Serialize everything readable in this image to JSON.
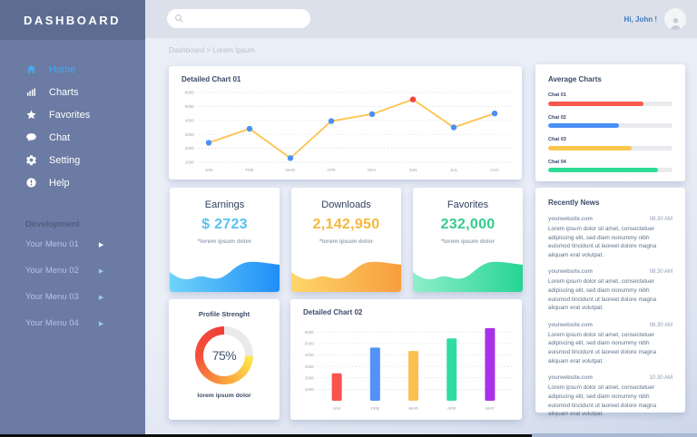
{
  "sidebar": {
    "brand": "DASHBOARD",
    "items": [
      {
        "label": "Home",
        "icon": "home-icon",
        "active": true
      },
      {
        "label": "Charts",
        "icon": "charts-icon",
        "active": false
      },
      {
        "label": "Favorites",
        "icon": "star-icon",
        "active": false
      },
      {
        "label": "Chat",
        "icon": "chat-icon",
        "active": false
      },
      {
        "label": "Setting",
        "icon": "gear-icon",
        "active": false
      },
      {
        "label": "Help",
        "icon": "help-icon",
        "active": false
      }
    ],
    "section_label": "Development",
    "dev_items": [
      "Your Menu 01",
      "Your Menu 02",
      "Your Menu 03",
      "Your Menu 04"
    ]
  },
  "topbar": {
    "search_value": "",
    "greeting": "Hi, John !"
  },
  "breadcrumb": "Dashboard > Lorem Ipsum",
  "chart_data": [
    {
      "id": "detailed-chart-01",
      "type": "line",
      "title": "Detailed Chart 01",
      "x": [
        "JAN",
        "FEB",
        "MAR",
        "APR",
        "MAY",
        "JUN",
        "JUL",
        "AUG"
      ],
      "values": [
        2400,
        3400,
        1300,
        3950,
        4450,
        5500,
        3500,
        4500
      ],
      "highlight_index": 5,
      "yticks": [
        6000,
        5000,
        4000,
        3000,
        2000,
        1000
      ],
      "ylim": [
        1000,
        6000
      ],
      "grid": "dotted",
      "legend": "none",
      "line_color": "#fcc34f",
      "point_color": "#4a90f5",
      "highlight_color": "#f4433a"
    },
    {
      "id": "average-charts",
      "type": "bar",
      "orientation": "horizontal",
      "title": "Average Charts",
      "categories": [
        "Chat 01",
        "Chat 02",
        "Chat 03",
        "Chat 04"
      ],
      "values": [
        77,
        57,
        67,
        88
      ],
      "xlim": [
        0,
        100
      ],
      "colors": [
        "#f9584e",
        "#4a90f5",
        "#fbc64d",
        "#2edc96"
      ],
      "track_color": "#e9eaee"
    },
    {
      "id": "detailed-chart-02",
      "type": "bar",
      "title": "Detailed Chart 02",
      "categories": [
        "JAN",
        "FEB",
        "MAR",
        "APR",
        "MAY"
      ],
      "values": [
        2400,
        4650,
        4350,
        5450,
        6350
      ],
      "colors": [
        "#f9544e",
        "#5291f5",
        "#fcc050",
        "#2fdda0",
        "#a832e8"
      ],
      "yticks": [
        6000,
        5000,
        4000,
        3000,
        2000,
        1000
      ],
      "ylim": [
        0,
        6500
      ],
      "grid": "dotted",
      "legend": "none"
    },
    {
      "id": "profile-strength",
      "type": "donut",
      "title": "Profile Strenght",
      "value": 75,
      "label": "75%",
      "caption": "lorem ipsum dolor",
      "segment_colors": [
        "#fde74d",
        "#f9a03c",
        "#f4503a",
        "#ee4036"
      ],
      "track_color": "#eaeaec"
    }
  ],
  "stats": [
    {
      "title": "Earnings",
      "value": "$ 2723",
      "caption": "*lorem ipsum dolor",
      "value_color": "#56c2f0",
      "wave_from": "#6fd4f8",
      "wave_to": "#1f8ef7"
    },
    {
      "title": "Downloads",
      "value": "2,142,950",
      "caption": "*lorem ipsum dolor",
      "value_color": "#f5b83d",
      "wave_from": "#fdd76a",
      "wave_to": "#f89d3d"
    },
    {
      "title": "Favorites",
      "value": "232,000",
      "caption": "*lorem ipsum dolor",
      "value_color": "#35cb8d",
      "wave_from": "#8feec9",
      "wave_to": "#27d495"
    }
  ],
  "news": {
    "title": "Recently News",
    "items": [
      {
        "source": "yourwebsite.com",
        "time": "08.30 AM",
        "text": "Lorem ipsum dolor sit amet, consectetuer adipiscing elit, sed diam nonummy nibh euismod tincidunt ut laoreet dolore magna aliquam erat volutpat."
      },
      {
        "source": "yourwebsite.com",
        "time": "08.30 AM",
        "text": "Lorem ipsum dolor sit amet, consectetuer adipiscing elit, sed diam nonummy nibh euismod tincidunt ut laoreet dolore magna aliquam erat volutpat."
      },
      {
        "source": "yourwebsite.com",
        "time": "08.30 AM",
        "text": "Lorem ipsum dolor sit amet, consectetuer adipiscing elit, sed diam nonummy nibh euismod tincidunt ut laoreet dolore magna aliquam erat volutpat."
      },
      {
        "source": "yourwebsite.com",
        "time": "10.30 AM",
        "text": "Lorem ipsum dolor sit amet, consectetuer adipiscing elit, sed diam nonummy nibh euismod tincidunt ut laoreet dolore magna aliquam erat volutpat."
      }
    ]
  }
}
